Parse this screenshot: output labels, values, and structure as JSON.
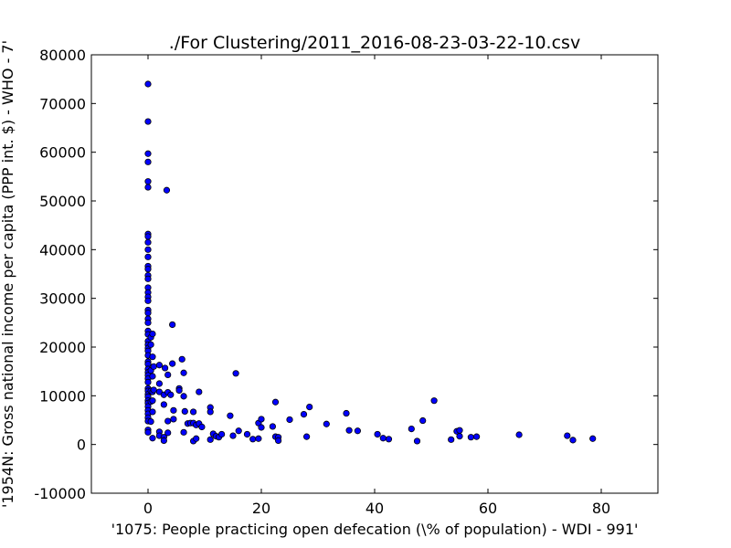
{
  "chart_data": {
    "type": "scatter",
    "title": "./For Clustering/2011_2016-08-23-03-22-10.csv",
    "xlabel": "'1075: People practicing open defecation  (\\% of population) - WDI - 991'",
    "ylabel": "'1954N: Gross national income per capita (PPP int. $) - WHO - 7'",
    "xlim": [
      -10,
      90
    ],
    "ylim": [
      -10000,
      80000
    ],
    "x_ticks": [
      0,
      20,
      40,
      60,
      80
    ],
    "y_ticks": [
      -10000,
      0,
      10000,
      20000,
      30000,
      40000,
      50000,
      60000,
      70000,
      80000
    ],
    "grid": false,
    "marker_color": "#0000ff",
    "marker_edge": "#000000",
    "points": [
      [
        0,
        74000
      ],
      [
        0,
        66300
      ],
      [
        0,
        59700
      ],
      [
        0,
        58000
      ],
      [
        0,
        54000
      ],
      [
        0,
        52800
      ],
      [
        0,
        43200
      ],
      [
        0,
        42700
      ],
      [
        0,
        41500
      ],
      [
        0,
        40000
      ],
      [
        0,
        38500
      ],
      [
        0,
        36600
      ],
      [
        0,
        36000
      ],
      [
        0,
        34700
      ],
      [
        0,
        34000
      ],
      [
        0,
        32200
      ],
      [
        0,
        31200
      ],
      [
        0,
        30300
      ],
      [
        0,
        29500
      ],
      [
        0,
        27600
      ],
      [
        0,
        27000
      ],
      [
        0,
        25800
      ],
      [
        0,
        25000
      ],
      [
        0,
        23300
      ],
      [
        0,
        22600
      ],
      [
        0,
        21200
      ],
      [
        0,
        20500
      ],
      [
        0,
        19800
      ],
      [
        0,
        19200
      ],
      [
        0,
        18300
      ],
      [
        0,
        17000
      ],
      [
        0,
        16500
      ],
      [
        0,
        15500
      ],
      [
        0,
        14800
      ],
      [
        0,
        14200
      ],
      [
        0,
        13500
      ],
      [
        0,
        12800
      ],
      [
        0,
        11500
      ],
      [
        0,
        11000
      ],
      [
        0,
        10300
      ],
      [
        0,
        9800
      ],
      [
        0,
        9000
      ],
      [
        0,
        8500
      ],
      [
        0,
        7800
      ],
      [
        0,
        7000
      ],
      [
        0,
        6300
      ],
      [
        0,
        5500
      ],
      [
        0,
        4800
      ],
      [
        0,
        3000
      ],
      [
        0,
        2500
      ],
      [
        0.5,
        22000
      ],
      [
        0.5,
        20500
      ],
      [
        0.5,
        15200
      ],
      [
        0.5,
        11000
      ],
      [
        0.5,
        8800
      ],
      [
        0.5,
        4700
      ],
      [
        0.8,
        22700
      ],
      [
        0.8,
        18000
      ],
      [
        0.8,
        14000
      ],
      [
        0.8,
        10800
      ],
      [
        0.8,
        9000
      ],
      [
        0.8,
        6700
      ],
      [
        0.8,
        1300
      ],
      [
        1,
        16000
      ],
      [
        1,
        11200
      ],
      [
        2,
        16300
      ],
      [
        2,
        12500
      ],
      [
        2,
        10800
      ],
      [
        2,
        2600
      ],
      [
        2,
        1800
      ],
      [
        2.8,
        8200
      ],
      [
        2.8,
        10200
      ],
      [
        2.8,
        1500
      ],
      [
        2.8,
        800
      ],
      [
        3,
        15700
      ],
      [
        3.3,
        52200
      ],
      [
        3.5,
        14300
      ],
      [
        3.5,
        10700
      ],
      [
        3.5,
        4800
      ],
      [
        3.5,
        2400
      ],
      [
        4,
        10200
      ],
      [
        4.3,
        24600
      ],
      [
        4.3,
        16600
      ],
      [
        4.5,
        7000
      ],
      [
        4.5,
        5200
      ],
      [
        5.5,
        11500
      ],
      [
        5.5,
        11100
      ],
      [
        6,
        17500
      ],
      [
        6.3,
        14700
      ],
      [
        6.3,
        9900
      ],
      [
        6.3,
        2500
      ],
      [
        6.5,
        6800
      ],
      [
        7,
        4300
      ],
      [
        7.5,
        4400
      ],
      [
        8,
        6700
      ],
      [
        8,
        4400
      ],
      [
        8,
        700
      ],
      [
        8.5,
        1200
      ],
      [
        8.5,
        4000
      ],
      [
        9,
        10800
      ],
      [
        9,
        4300
      ],
      [
        9.5,
        3600
      ],
      [
        11,
        7600
      ],
      [
        11,
        6700
      ],
      [
        11,
        1000
      ],
      [
        11.5,
        2200
      ],
      [
        12,
        1700
      ],
      [
        12.5,
        1500
      ],
      [
        13,
        2100
      ],
      [
        14.5,
        5900
      ],
      [
        15,
        1800
      ],
      [
        15.5,
        14600
      ],
      [
        16,
        2800
      ],
      [
        17.5,
        2100
      ],
      [
        18.5,
        1100
      ],
      [
        19.5,
        1200
      ],
      [
        19.5,
        4400
      ],
      [
        20,
        5200
      ],
      [
        20,
        3500
      ],
      [
        22,
        3700
      ],
      [
        22.5,
        8700
      ],
      [
        22.5,
        1600
      ],
      [
        23,
        1500
      ],
      [
        23,
        800
      ],
      [
        25,
        5100
      ],
      [
        27.5,
        6200
      ],
      [
        28,
        1600
      ],
      [
        28.5,
        7700
      ],
      [
        31.5,
        4200
      ],
      [
        35,
        6400
      ],
      [
        35.5,
        2900
      ],
      [
        37,
        2800
      ],
      [
        40.5,
        2100
      ],
      [
        41.5,
        1300
      ],
      [
        42.5,
        1100
      ],
      [
        46.5,
        3200
      ],
      [
        47.5,
        700
      ],
      [
        48.5,
        4900
      ],
      [
        50.5,
        9000
      ],
      [
        53.5,
        1000
      ],
      [
        54.5,
        2700
      ],
      [
        55,
        1700
      ],
      [
        55,
        2900
      ],
      [
        57,
        1500
      ],
      [
        58,
        1600
      ],
      [
        65.5,
        2000
      ],
      [
        74,
        1800
      ],
      [
        75,
        900
      ],
      [
        78.5,
        1200
      ]
    ]
  }
}
